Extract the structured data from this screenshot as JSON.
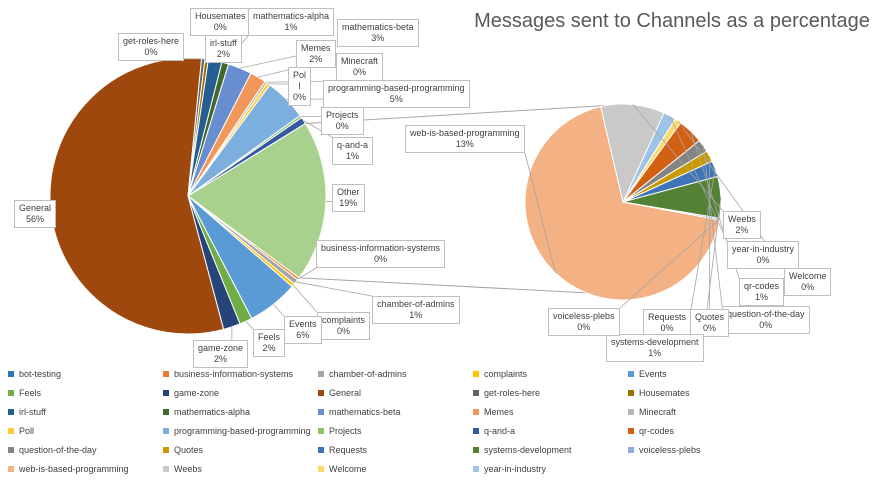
{
  "chart_data": {
    "type": "pie",
    "subtype": "pie-of-pie",
    "title": "Messages sent to Channels as a percentage",
    "colors": {
      "bot-testing": "#2e75b6",
      "business-information-systems": "#ed7d31",
      "chamber-of-admins": "#a5a5a5",
      "complaints": "#ffc000",
      "Events": "#5b9bd5",
      "Feels": "#70ad47",
      "game-zone": "#264478",
      "General": "#9e480e",
      "get-roles-here": "#636363",
      "Housemates": "#997300",
      "irl-stuff": "#255e91",
      "mathematics-alpha": "#43682b",
      "mathematics-beta": "#698ed0",
      "Memes": "#f1975a",
      "Minecraft": "#b7b7b7",
      "Poll": "#ffcd33",
      "programming-based-programming": "#7cafdd",
      "Projects": "#8cc168",
      "q-and-a": "#335aa1",
      "qr-codes": "#d26012",
      "question-of-the-day": "#848484",
      "Quotes": "#cc9a00",
      "Requests": "#3e75b6",
      "systems-development": "#548235",
      "voiceless-plebs": "#8faadc",
      "web-is-based-programming": "#f4b183",
      "Weebs": "#c9c9c9",
      "Welcome": "#ffd966",
      "year-in-industry": "#9dc3e6"
    },
    "main_pie": [
      {
        "name": "Other",
        "value": 19,
        "label": "19%"
      },
      {
        "name": "business-information-systems",
        "value": 0.3,
        "label": "0%"
      },
      {
        "name": "chamber-of-admins",
        "value": 0.6,
        "label": "1%"
      },
      {
        "name": "complaints",
        "value": 0.4,
        "label": "0%"
      },
      {
        "name": "Events",
        "value": 6,
        "label": "6%"
      },
      {
        "name": "Feels",
        "value": 1.5,
        "label": "2%"
      },
      {
        "name": "game-zone",
        "value": 2,
        "label": "2%"
      },
      {
        "name": "General",
        "value": 56,
        "label": "56%"
      },
      {
        "name": "get-roles-here",
        "value": 0.4,
        "label": "0%"
      },
      {
        "name": "Housemates",
        "value": 0.4,
        "label": "0%"
      },
      {
        "name": "irl-stuff",
        "value": 1.6,
        "label": "2%"
      },
      {
        "name": "mathematics-alpha",
        "value": 0.8,
        "label": "1%"
      },
      {
        "name": "mathematics-beta",
        "value": 2.8,
        "label": "3%"
      },
      {
        "name": "Memes",
        "value": 1.9,
        "label": "2%"
      },
      {
        "name": "Minecraft",
        "value": 0.3,
        "label": "0%"
      },
      {
        "name": "Poll",
        "value": 0.4,
        "label": "0%"
      },
      {
        "name": "programming-based-programming",
        "value": 5,
        "label": "5%"
      },
      {
        "name": "Projects",
        "value": 0.3,
        "label": "0%"
      },
      {
        "name": "q-and-a",
        "value": 0.8,
        "label": "1%"
      }
    ],
    "secondary_pie": [
      {
        "name": "web-is-based-programming",
        "value": 13,
        "label": "13%"
      },
      {
        "name": "Weebs",
        "value": 2,
        "label": "2%"
      },
      {
        "name": "year-in-industry",
        "value": 0.4,
        "label": "0%"
      },
      {
        "name": "Welcome",
        "value": 0.2,
        "label": "0%"
      },
      {
        "name": "qr-codes",
        "value": 0.8,
        "label": "1%"
      },
      {
        "name": "question-of-the-day",
        "value": 0.4,
        "label": "0%"
      },
      {
        "name": "Quotes",
        "value": 0.35,
        "label": "0%"
      },
      {
        "name": "Requests",
        "value": 0.5,
        "label": "0%"
      },
      {
        "name": "systems-development",
        "value": 1.3,
        "label": "1%"
      },
      {
        "name": "voiceless-plebs",
        "value": 0.05,
        "label": "0%"
      }
    ],
    "legend": {
      "placement": "bottom",
      "items": [
        "bot-testing",
        "business-information-systems",
        "chamber-of-admins",
        "complaints",
        "Events",
        "Feels",
        "game-zone",
        "General",
        "get-roles-here",
        "Housemates",
        "irl-stuff",
        "mathematics-alpha",
        "mathematics-beta",
        "Memes",
        "Minecraft",
        "Poll",
        "programming-based-programming",
        "Projects",
        "q-and-a",
        "qr-codes",
        "question-of-the-day",
        "Quotes",
        "Requests",
        "systems-development",
        "voiceless-plebs",
        "web-is-based-programming",
        "Weebs",
        "Welcome",
        "year-in-industry"
      ]
    }
  }
}
